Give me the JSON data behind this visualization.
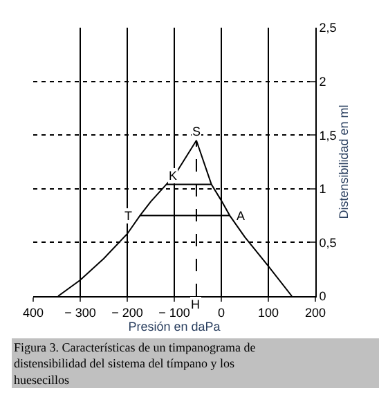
{
  "chart_data": {
    "type": "line",
    "xlabel": "Presión en daPa",
    "ylabel": "Distensibilidad en ml",
    "x": [
      -347,
      -300,
      -250,
      -200,
      -173,
      -150,
      -117,
      -100,
      -53,
      -21,
      0,
      18,
      50,
      100,
      150
    ],
    "series": [
      {
        "color": "#000000",
        "values": [
          0,
          0.15,
          0.35,
          0.58,
          0.75,
          0.88,
          1.04,
          1.12,
          1.45,
          1.04,
          0.89,
          0.75,
          0.55,
          0.28,
          0
        ]
      },
      {
        "color": "#000000",
        "x": [
          -117,
          -21
        ],
        "values": [
          1.04,
          1.04
        ]
      },
      {
        "color": "#000000",
        "x": [
          -173,
          18
        ],
        "values": [
          0.75,
          0.75
        ]
      },
      {
        "color": "#000000",
        "x": [
          -53,
          -53
        ],
        "values": [
          0,
          1.45
        ],
        "line_style": "dashed"
      }
    ],
    "xlim": [
      -400,
      200
    ],
    "ylim": [
      0,
      2.5
    ],
    "xticks": [
      {
        "value": -400,
        "label": "400"
      },
      {
        "value": -300,
        "label": "− 300"
      },
      {
        "value": -200,
        "label": "− 200"
      },
      {
        "value": -100,
        "label": "− 100"
      },
      0,
      100,
      200
    ],
    "yticks": [
      0,
      {
        "value": 0.5,
        "label": "0,5"
      },
      1,
      {
        "value": 1.5,
        "label": "1,5"
      },
      2,
      {
        "value": 2.5,
        "label": "2,5"
      }
    ],
    "grid": true,
    "marker": "none",
    "line_style": "solid",
    "annotations": [
      {
        "text": "S",
        "x": -53,
        "y": 1.45
      },
      {
        "text": "K",
        "x": -80,
        "y": 1.04
      },
      {
        "text": "T",
        "x": -173,
        "y": 0.75
      },
      {
        "text": "A",
        "x": 18,
        "y": 0.75
      },
      {
        "text": "H",
        "x": -53,
        "y": 0
      },
      "Figura 3. Características de un timpanograma de distensibilidad del sistema del tímpano y los huesecillos"
    ]
  }
}
